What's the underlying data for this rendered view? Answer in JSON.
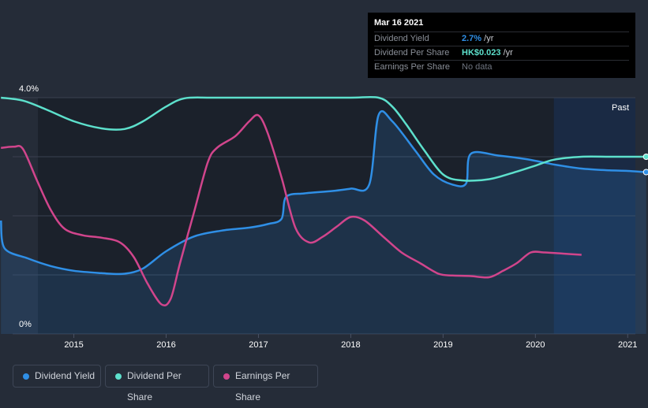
{
  "chart_data": {
    "type": "line",
    "title": "",
    "xlabel": "",
    "ylabel": "",
    "xlim": [
      2014.2,
      2021.22
    ],
    "ylim": [
      0,
      4.0
    ],
    "y_ticks": [
      "4.0%",
      "0%"
    ],
    "x_ticks": [
      2015,
      2016,
      2017,
      2018,
      2019,
      2020,
      2021
    ],
    "past_label": "Past",
    "past_start": 2020.2,
    "series": [
      {
        "name": "Dividend Yield",
        "color": "#2f8fe6",
        "fill": true,
        "end_marker": true,
        "points": [
          [
            2014.21,
            1.92
          ],
          [
            2014.25,
            1.45
          ],
          [
            2014.5,
            1.28
          ],
          [
            2014.75,
            1.15
          ],
          [
            2015.0,
            1.07
          ],
          [
            2015.3,
            1.03
          ],
          [
            2015.55,
            1.02
          ],
          [
            2015.75,
            1.11
          ],
          [
            2016.0,
            1.4
          ],
          [
            2016.3,
            1.65
          ],
          [
            2016.6,
            1.75
          ],
          [
            2016.9,
            1.8
          ],
          [
            2017.1,
            1.86
          ],
          [
            2017.25,
            1.95
          ],
          [
            2017.3,
            2.32
          ],
          [
            2017.5,
            2.38
          ],
          [
            2017.8,
            2.42
          ],
          [
            2018.0,
            2.46
          ],
          [
            2018.2,
            2.53
          ],
          [
            2018.3,
            3.7
          ],
          [
            2018.45,
            3.6
          ],
          [
            2018.7,
            3.1
          ],
          [
            2018.9,
            2.7
          ],
          [
            2019.1,
            2.53
          ],
          [
            2019.25,
            2.55
          ],
          [
            2019.3,
            3.05
          ],
          [
            2019.6,
            3.02
          ],
          [
            2019.9,
            2.96
          ],
          [
            2020.2,
            2.87
          ],
          [
            2020.5,
            2.8
          ],
          [
            2020.8,
            2.77
          ],
          [
            2021.0,
            2.76
          ],
          [
            2021.2,
            2.74
          ]
        ]
      },
      {
        "name": "Dividend Per Share",
        "color": "#5de0cc",
        "fill": false,
        "end_marker": true,
        "points": [
          [
            2014.21,
            4.0
          ],
          [
            2014.45,
            3.95
          ],
          [
            2014.7,
            3.8
          ],
          [
            2015.0,
            3.6
          ],
          [
            2015.3,
            3.48
          ],
          [
            2015.55,
            3.47
          ],
          [
            2015.75,
            3.6
          ],
          [
            2016.0,
            3.85
          ],
          [
            2016.2,
            3.99
          ],
          [
            2016.5,
            4.0
          ],
          [
            2017.0,
            4.0
          ],
          [
            2017.5,
            4.0
          ],
          [
            2018.0,
            4.0
          ],
          [
            2018.3,
            4.0
          ],
          [
            2018.45,
            3.85
          ],
          [
            2018.6,
            3.55
          ],
          [
            2018.8,
            3.1
          ],
          [
            2019.0,
            2.7
          ],
          [
            2019.2,
            2.6
          ],
          [
            2019.5,
            2.62
          ],
          [
            2019.8,
            2.75
          ],
          [
            2020.0,
            2.85
          ],
          [
            2020.2,
            2.95
          ],
          [
            2020.5,
            3.0
          ],
          [
            2020.8,
            3.0
          ],
          [
            2021.0,
            3.0
          ],
          [
            2021.2,
            3.0
          ]
        ]
      },
      {
        "name": "Earnings Per Share",
        "color": "#d1458c",
        "fill": false,
        "end_marker": false,
        "points": [
          [
            2014.21,
            3.15
          ],
          [
            2014.35,
            3.17
          ],
          [
            2014.45,
            3.13
          ],
          [
            2014.6,
            2.6
          ],
          [
            2014.75,
            2.1
          ],
          [
            2014.9,
            1.78
          ],
          [
            2015.1,
            1.67
          ],
          [
            2015.3,
            1.63
          ],
          [
            2015.5,
            1.55
          ],
          [
            2015.65,
            1.3
          ],
          [
            2015.8,
            0.85
          ],
          [
            2015.95,
            0.5
          ],
          [
            2016.05,
            0.6
          ],
          [
            2016.15,
            1.2
          ],
          [
            2016.3,
            2.05
          ],
          [
            2016.45,
            2.9
          ],
          [
            2016.55,
            3.15
          ],
          [
            2016.75,
            3.35
          ],
          [
            2016.9,
            3.6
          ],
          [
            2017.0,
            3.7
          ],
          [
            2017.1,
            3.4
          ],
          [
            2017.25,
            2.65
          ],
          [
            2017.4,
            1.8
          ],
          [
            2017.55,
            1.55
          ],
          [
            2017.7,
            1.65
          ],
          [
            2017.85,
            1.82
          ],
          [
            2018.0,
            1.98
          ],
          [
            2018.15,
            1.92
          ],
          [
            2018.35,
            1.65
          ],
          [
            2018.55,
            1.38
          ],
          [
            2018.75,
            1.2
          ],
          [
            2018.95,
            1.02
          ],
          [
            2019.1,
            0.99
          ],
          [
            2019.3,
            0.98
          ],
          [
            2019.5,
            0.96
          ],
          [
            2019.65,
            1.07
          ],
          [
            2019.8,
            1.2
          ],
          [
            2019.95,
            1.38
          ],
          [
            2020.1,
            1.38
          ],
          [
            2020.3,
            1.36
          ],
          [
            2020.5,
            1.34
          ]
        ]
      }
    ]
  },
  "tooltip": {
    "date": "Mar 16 2021",
    "rows": [
      {
        "label": "Dividend Yield",
        "value": "2.7%",
        "unit": " /yr",
        "color": "#2f8fe6"
      },
      {
        "label": "Dividend Per Share",
        "value": "HK$0.023",
        "unit": " /yr",
        "color": "#5de0cc"
      },
      {
        "label": "Earnings Per Share",
        "value": "No data",
        "unit": "",
        "color": "#6f7580"
      }
    ]
  },
  "legend": [
    {
      "label": "Dividend Yield",
      "color": "#2f8fe6"
    },
    {
      "label": "Dividend Per Share",
      "color": "#5de0cc"
    },
    {
      "label": "Earnings Per Share",
      "color": "#d1458c"
    }
  ]
}
